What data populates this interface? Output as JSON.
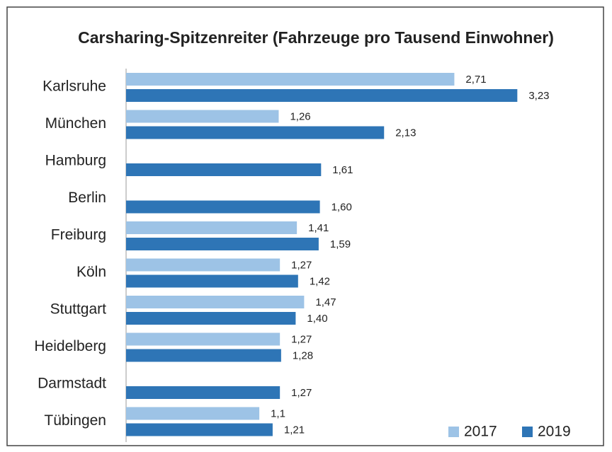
{
  "chart_data": {
    "type": "hbar",
    "title": "Carsharing-Spitzenreiter (Fahrzeuge pro Tausend Einwohner)",
    "categories": [
      "Karlsruhe",
      "München",
      "Hamburg",
      "Berlin",
      "Freiburg",
      "Köln",
      "Stuttgart",
      "Heidelberg",
      "Darmstadt",
      "Tübingen"
    ],
    "series": [
      {
        "name": "2017",
        "color": "#9dc3e6",
        "values": [
          2.71,
          1.26,
          null,
          null,
          1.41,
          1.27,
          1.47,
          1.27,
          null,
          1.1
        ],
        "value_labels": [
          "2,71",
          "1,26",
          null,
          null,
          "1,41",
          "1,27",
          "1,47",
          "1,27",
          null,
          "1,1"
        ]
      },
      {
        "name": "2019",
        "color": "#2e75b6",
        "values": [
          3.23,
          2.13,
          1.61,
          1.6,
          1.59,
          1.42,
          1.4,
          1.28,
          1.27,
          1.21
        ],
        "value_labels": [
          "3,23",
          "2,13",
          "1,61",
          "1,60",
          "1,59",
          "1,42",
          "1,40",
          "1,28",
          "1,27",
          "1,21"
        ]
      }
    ],
    "xlim": [
      0,
      4
    ],
    "legend": "bottom-right"
  }
}
